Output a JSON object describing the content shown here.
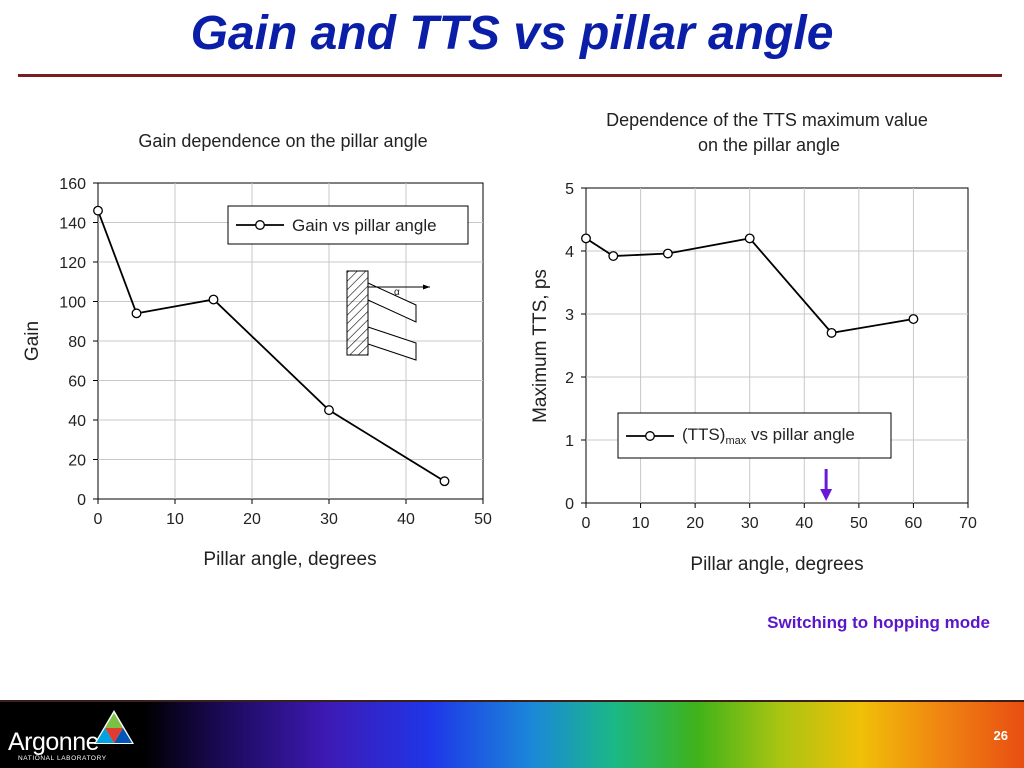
{
  "slide": {
    "title": "Gain and TTS vs pillar angle",
    "note": "Switching to hopping mode",
    "page_number": "26",
    "logo": {
      "name": "Argonne",
      "subtitle": "NATIONAL LABORATORY",
      "icon": "argonne-triangle-logo"
    },
    "colors": {
      "title": "#0b1ea8",
      "rule": "#7b1c22",
      "note": "#5a16c8",
      "arrow": "#6a18d8"
    }
  },
  "chart_data": [
    {
      "type": "line",
      "title": "Gain dependence on the pillar angle",
      "xlabel": "Pillar angle, degrees",
      "ylabel": "Gain",
      "xlim": [
        0,
        50
      ],
      "ylim": [
        0,
        160
      ],
      "xticks": [
        "0",
        "10",
        "20",
        "30",
        "40",
        "50"
      ],
      "yticks": [
        "0",
        "20",
        "40",
        "60",
        "80",
        "100",
        "120",
        "140",
        "160"
      ],
      "grid": true,
      "legend_position": "top-right",
      "series": [
        {
          "name": "Gain vs pillar angle",
          "x": [
            0,
            5,
            15,
            30,
            45
          ],
          "y": [
            146,
            94,
            101,
            45,
            9
          ]
        }
      ],
      "inset": {
        "icon": "pillar-angle-diagram-icon",
        "label": "α"
      }
    },
    {
      "type": "line",
      "title": "Dependence of the TTS maximum value on the pillar angle",
      "title_lines": [
        "Dependence of the TTS maximum value",
        "on the pillar angle"
      ],
      "xlabel": "Pillar angle, degrees",
      "ylabel": "Maximum TTS, ps",
      "xlim": [
        0,
        70
      ],
      "ylim": [
        0,
        5
      ],
      "xticks": [
        "0",
        "10",
        "20",
        "30",
        "40",
        "50",
        "60",
        "70"
      ],
      "yticks": [
        "0",
        "1",
        "2",
        "3",
        "4",
        "5"
      ],
      "grid": true,
      "legend_position": "bottom-right",
      "series": [
        {
          "name": "(TTS)max vs pillar angle",
          "name_main": "(TTS)",
          "name_sub": "max",
          "name_tail": " vs pillar angle",
          "x": [
            0,
            5,
            15,
            30,
            45,
            60
          ],
          "y": [
            4.2,
            3.92,
            3.96,
            4.2,
            2.7,
            2.92
          ]
        }
      ],
      "marker_x": 44
    }
  ]
}
